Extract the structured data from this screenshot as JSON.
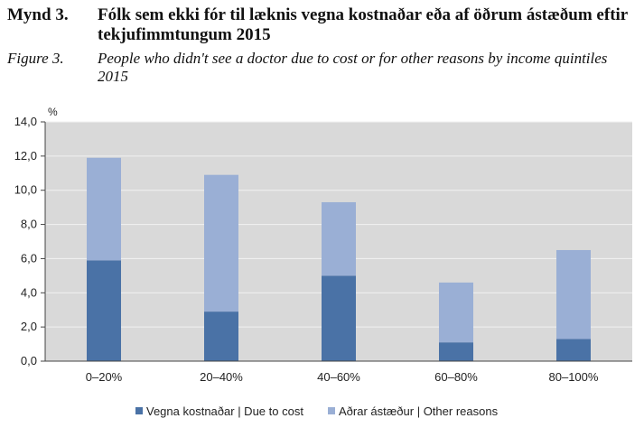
{
  "caption": {
    "is_label": "Mynd 3.",
    "is_title": "Fólk sem ekki fór til læknis vegna kostnaðar eða af öðrum ástæðum eftir tekjufimmtungum 2015",
    "en_label": "Figure 3.",
    "en_title": "People who didn't see a doctor due to cost or for other reasons by income quintiles 2015"
  },
  "chart_data": {
    "type": "bar",
    "stacked": true,
    "categories": [
      "0–20%",
      "20–40%",
      "40–60%",
      "60–80%",
      "80–100%"
    ],
    "series": [
      {
        "name": "Vegna kostnaðar | Due to cost",
        "values": [
          5.9,
          2.9,
          5.0,
          1.1,
          1.3
        ],
        "color": "#4a72a6"
      },
      {
        "name": "Aðrar ástæður | Other reasons",
        "values": [
          6.0,
          8.0,
          4.3,
          3.5,
          5.2
        ],
        "color": "#9aafd5"
      }
    ],
    "ylabel": "%",
    "ylim": [
      0,
      14
    ],
    "yticks": [
      "0,0",
      "2,0",
      "4,0",
      "6,0",
      "8,0",
      "10,0",
      "12,0",
      "14,0"
    ],
    "grid": true,
    "plot_background": "#d9d9d9",
    "legend_position": "bottom"
  }
}
